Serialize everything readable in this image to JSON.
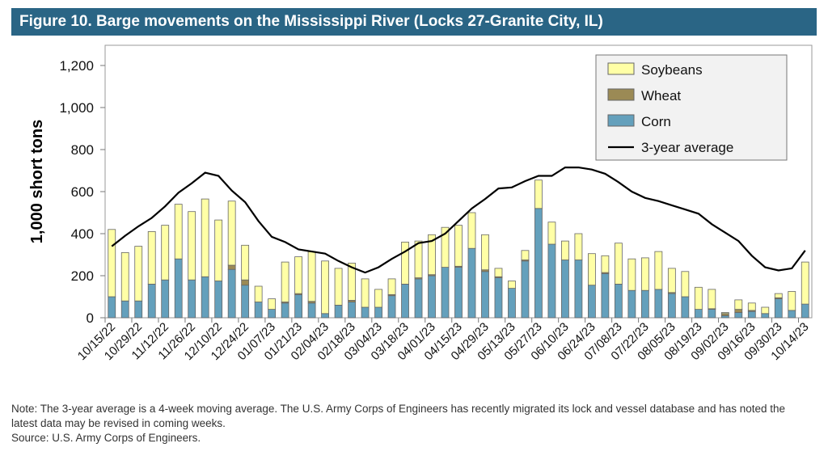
{
  "title": "Figure 10. Barge movements on the Mississippi River (Locks 27-Granite City, IL)",
  "note": "Note: The 3-year average is a 4-week moving average. The U.S. Army Corps of Engineers has recently migrated its lock and vessel database and has noted the latest data may be revised in coming weeks.",
  "source": "Source: U.S. Army Corps of Engineers.",
  "chart_data": {
    "type": "bar",
    "stacked": true,
    "ylabel": "1,000 short tons",
    "ylim": [
      0,
      1200
    ],
    "yticks": [
      0,
      200,
      400,
      600,
      800,
      1000,
      1200
    ],
    "ytick_labels": [
      "0",
      "200",
      "400",
      "600",
      "800",
      "1,000",
      "1,200"
    ],
    "legend_placement": "top-right",
    "grid": false,
    "xtick_labels": [
      "10/15/22",
      "10/29/22",
      "11/12/22",
      "11/26/22",
      "12/10/22",
      "12/24/22",
      "01/07/23",
      "01/21/23",
      "02/04/23",
      "02/18/23",
      "03/04/23",
      "03/18/23",
      "04/01/23",
      "04/15/23",
      "04/29/23",
      "05/13/23",
      "05/27/23",
      "06/10/23",
      "06/24/23",
      "07/08/23",
      "07/22/23",
      "08/05/23",
      "08/19/23",
      "09/02/23",
      "09/16/23",
      "09/30/23",
      "10/14/23"
    ],
    "weeks": 53,
    "series": [
      {
        "name": "Corn",
        "color": "#64a0bc",
        "values": [
          100,
          80,
          80,
          160,
          180,
          280,
          180,
          195,
          175,
          230,
          155,
          75,
          40,
          70,
          110,
          70,
          20,
          60,
          75,
          50,
          50,
          105,
          160,
          185,
          200,
          240,
          240,
          330,
          220,
          190,
          140,
          270,
          520,
          350,
          275,
          275,
          155,
          210,
          160,
          130,
          130,
          135,
          115,
          100,
          40,
          40,
          10,
          25,
          30,
          20,
          90,
          35,
          65
        ]
      },
      {
        "name": "Wheat",
        "color": "#9b8a55",
        "values": [
          0,
          0,
          0,
          0,
          0,
          0,
          0,
          0,
          0,
          20,
          25,
          0,
          0,
          5,
          5,
          8,
          0,
          0,
          8,
          0,
          0,
          5,
          0,
          5,
          5,
          0,
          5,
          0,
          8,
          5,
          0,
          5,
          0,
          0,
          0,
          0,
          0,
          5,
          0,
          0,
          0,
          0,
          5,
          0,
          0,
          3,
          10,
          15,
          5,
          0,
          5,
          0,
          0
        ]
      },
      {
        "name": "Soybeans",
        "color": "#ffffa6",
        "values": [
          320,
          230,
          260,
          250,
          260,
          260,
          325,
          370,
          290,
          305,
          165,
          75,
          50,
          190,
          175,
          237,
          250,
          175,
          177,
          135,
          85,
          75,
          200,
          175,
          190,
          190,
          195,
          170,
          167,
          40,
          35,
          45,
          135,
          105,
          90,
          125,
          150,
          80,
          195,
          150,
          155,
          180,
          115,
          120,
          105,
          92,
          5,
          45,
          35,
          30,
          20,
          90,
          200
        ]
      }
    ],
    "line": {
      "name": "3-year average",
      "color": "#000000",
      "values": [
        340,
        390,
        435,
        475,
        530,
        595,
        640,
        690,
        675,
        605,
        550,
        460,
        385,
        360,
        325,
        315,
        305,
        270,
        240,
        215,
        240,
        280,
        315,
        355,
        365,
        400,
        460,
        520,
        565,
        615,
        620,
        650,
        675,
        675,
        715,
        715,
        705,
        685,
        645,
        600,
        570,
        555,
        535,
        515,
        495,
        445,
        405,
        365,
        295,
        240,
        225,
        235,
        320
      ]
    },
    "legend": [
      "Soybeans",
      "Wheat",
      "Corn",
      "3-year average"
    ]
  }
}
